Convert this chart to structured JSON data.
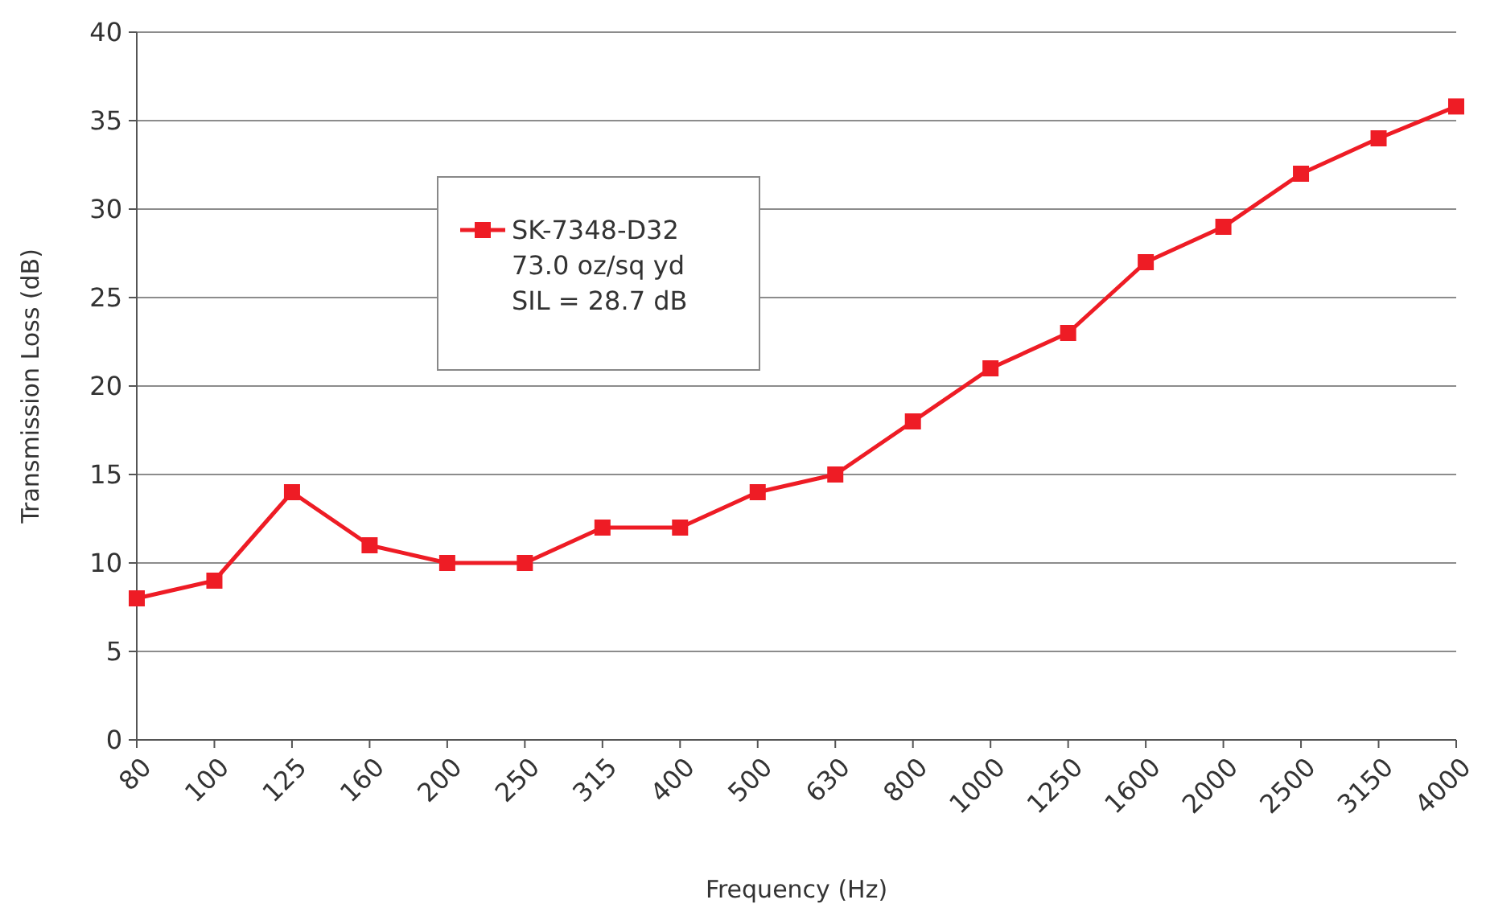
{
  "chart_data": {
    "type": "line",
    "xlabel": "Frequency (Hz)",
    "ylabel": "Transmission Loss (dB)",
    "categories": [
      "80",
      "100",
      "125",
      "160",
      "200",
      "250",
      "315",
      "400",
      "500",
      "630",
      "800",
      "1000",
      "1250",
      "1600",
      "2000",
      "2500",
      "3150",
      "4000"
    ],
    "series": [
      {
        "name": "SK-7348-D32",
        "color": "#ee1c25",
        "values": [
          8,
          9,
          14,
          11,
          10,
          10,
          12,
          12,
          14,
          15,
          18,
          21,
          23,
          27,
          29,
          32,
          34,
          35.8
        ]
      }
    ],
    "annotations": [
      "73.0 oz/sq yd",
      "SIL = 28.7 dB"
    ],
    "ylim": [
      0,
      40
    ],
    "yticks": [
      0,
      5,
      10,
      15,
      20,
      25,
      30,
      35,
      40
    ],
    "grid": "y",
    "legend": "top left",
    "marker": "square",
    "line_style": "solid"
  }
}
